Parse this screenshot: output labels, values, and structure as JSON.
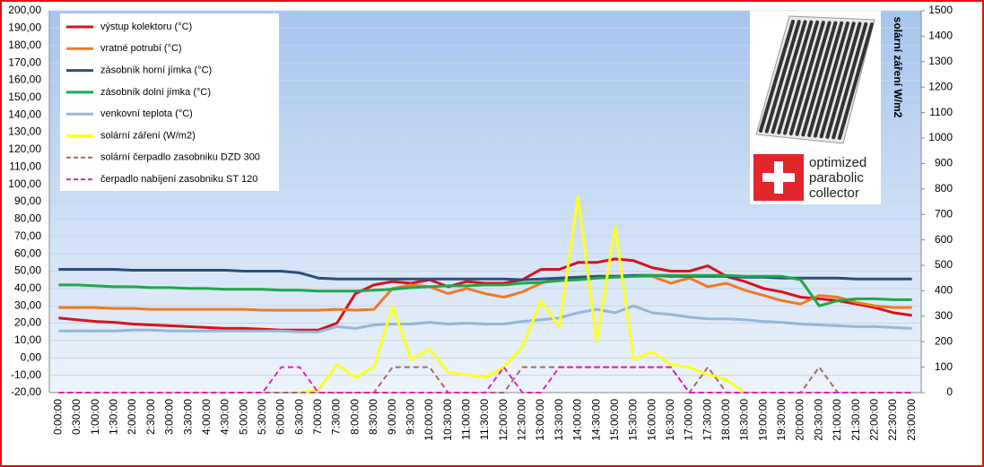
{
  "chart_data": {
    "type": "line",
    "categories": [
      "0:00:00",
      "0:30:00",
      "1:00:00",
      "1:30:00",
      "2:00:00",
      "2:30:00",
      "3:00:00",
      "3:30:00",
      "4:00:00",
      "4:30:00",
      "5:00:00",
      "5:30:00",
      "6:00:00",
      "6:30:00",
      "7:00:00",
      "7:30:00",
      "8:00:00",
      "8:30:00",
      "9:00:00",
      "9:30:00",
      "10:00:00",
      "10:30:00",
      "11:00:00",
      "11:30:00",
      "12:00:00",
      "12:30:00",
      "13:00:00",
      "13:30:00",
      "14:00:00",
      "14:30:00",
      "15:00:00",
      "15:30:00",
      "16:00:00",
      "16:30:00",
      "17:00:00",
      "17:30:00",
      "18:00:00",
      "18:30:00",
      "19:00:00",
      "19:30:00",
      "20:00:00",
      "20:30:00",
      "21:00:00",
      "21:30:00",
      "22:00:00",
      "22:30:00",
      "23:00:00"
    ],
    "ylim": [
      -20,
      200
    ],
    "yticks": [
      {
        "value": -20,
        "label": "-20,00"
      },
      {
        "value": -10,
        "label": "-10,00"
      },
      {
        "value": 0,
        "label": "0,00"
      },
      {
        "value": 10,
        "label": "10,00"
      },
      {
        "value": 20,
        "label": "20,00"
      },
      {
        "value": 30,
        "label": "30,00"
      },
      {
        "value": 40,
        "label": "40,00"
      },
      {
        "value": 50,
        "label": "50,00"
      },
      {
        "value": 60,
        "label": "60,00"
      },
      {
        "value": 70,
        "label": "70,00"
      },
      {
        "value": 80,
        "label": "80,00"
      },
      {
        "value": 90,
        "label": "90,00"
      },
      {
        "value": 100,
        "label": "100,00"
      },
      {
        "value": 110,
        "label": "110,00"
      },
      {
        "value": 120,
        "label": "120,00"
      },
      {
        "value": 130,
        "label": "130,00"
      },
      {
        "value": 140,
        "label": "140,00"
      },
      {
        "value": 150,
        "label": "150,00"
      },
      {
        "value": 160,
        "label": "160,00"
      },
      {
        "value": 170,
        "label": "170,00"
      },
      {
        "value": 180,
        "label": "180,00"
      },
      {
        "value": 190,
        "label": "190,00"
      },
      {
        "value": 200,
        "label": "200,00"
      }
    ],
    "y2lim": [
      0,
      1500
    ],
    "y2ticks": [
      0,
      100,
      200,
      300,
      400,
      500,
      600,
      700,
      800,
      900,
      1000,
      1100,
      1200,
      1300,
      1400,
      1500
    ],
    "y2label": "solární záření W/m2",
    "grid": true,
    "legend": "top-left",
    "series": [
      {
        "name": "výstup kolektoru (°C)",
        "color": "#d8121b",
        "dash": false,
        "values": [
          23,
          22,
          21,
          20.5,
          19.5,
          19,
          18.5,
          18,
          17.5,
          17,
          17,
          16.5,
          16,
          16,
          16,
          20,
          37,
          42,
          44,
          43,
          45,
          41,
          44,
          43,
          43,
          45,
          51,
          51,
          55,
          55,
          57,
          56,
          52,
          50,
          50,
          53,
          47,
          44,
          40,
          38,
          35,
          34,
          33,
          31,
          29,
          26,
          24.5
        ]
      },
      {
        "name": "vratné potrubí (°C)",
        "color": "#ef7a22",
        "dash": false,
        "values": [
          29,
          29,
          29,
          28.5,
          28.5,
          28,
          28,
          28,
          28,
          28,
          28,
          27.5,
          27.5,
          27.5,
          27.5,
          28,
          27.5,
          28,
          40,
          42,
          41,
          37,
          40,
          37,
          35,
          38,
          43,
          46,
          46,
          47,
          47,
          47,
          47,
          43,
          46,
          41,
          43,
          39,
          36,
          33,
          31,
          36,
          35,
          32,
          30,
          29,
          29
        ]
      },
      {
        "name": "zásobník horní jímka (°C)",
        "color": "#2b4e7c",
        "dash": false,
        "values": [
          51,
          51,
          51,
          51,
          50.5,
          50.5,
          50.5,
          50.5,
          50.5,
          50.5,
          50,
          50,
          50,
          49,
          46,
          45.5,
          45.5,
          45.5,
          45.5,
          45.5,
          45.5,
          45.5,
          45.5,
          45.5,
          45.5,
          45,
          45.5,
          46,
          46.5,
          47,
          47,
          47.5,
          47.5,
          47,
          47,
          47,
          47,
          46.5,
          46.5,
          46,
          46,
          46,
          46,
          45.5,
          45.5,
          45.5,
          45.5
        ]
      },
      {
        "name": "zásobník dolní jímka  (°C)",
        "color": "#1fa84a",
        "dash": false,
        "values": [
          42,
          42,
          41.5,
          41,
          41,
          40.5,
          40.5,
          40,
          40,
          39.5,
          39.5,
          39.5,
          39,
          39,
          38.5,
          38.5,
          38.5,
          39,
          39.5,
          40.5,
          41,
          41.5,
          41.5,
          42,
          42,
          43,
          43.5,
          44.5,
          45,
          46,
          46.5,
          47,
          47.5,
          47.5,
          47.5,
          47.5,
          47.5,
          47,
          47,
          47,
          45,
          30,
          33,
          34,
          34,
          33.5,
          33.5
        ]
      },
      {
        "name": "venkovní teplota (°C)",
        "color": "#94b7da",
        "dash": false,
        "values": [
          15.5,
          15.5,
          15.5,
          15.5,
          16,
          16,
          15.5,
          15.5,
          15.5,
          15.5,
          15.5,
          15.5,
          15.5,
          15,
          15,
          18,
          17,
          19,
          19.5,
          19.5,
          20.5,
          19.5,
          20,
          19.5,
          19.5,
          21,
          22,
          23,
          26,
          28,
          26,
          30,
          26,
          25,
          23.5,
          22.5,
          22.5,
          22,
          21,
          20.5,
          19.5,
          19,
          18.5,
          18,
          18,
          17.5,
          17
        ]
      },
      {
        "name": "solární záření (W/m2)",
        "color": "#ffff22",
        "dash": false,
        "axis": "y2",
        "values": [
          null,
          null,
          null,
          null,
          null,
          null,
          null,
          null,
          null,
          null,
          null,
          null,
          null,
          0,
          10,
          110,
          60,
          100,
          340,
          130,
          170,
          80,
          70,
          60,
          100,
          180,
          360,
          260,
          770,
          200,
          650,
          130,
          160,
          110,
          100,
          70,
          50,
          0,
          null,
          null,
          null,
          null,
          null,
          null,
          null,
          null,
          null
        ]
      },
      {
        "name": "solární čerpadlo zasobniku  DZD 300",
        "color": "#a86a5c",
        "dash": true,
        "axis": "y2",
        "values": [
          0,
          0,
          0,
          0,
          0,
          0,
          0,
          0,
          0,
          0,
          0,
          0,
          0,
          0,
          0,
          0,
          0,
          0,
          100,
          100,
          100,
          0,
          0,
          0,
          0,
          100,
          100,
          100,
          100,
          100,
          100,
          100,
          100,
          100,
          0,
          100,
          0,
          0,
          0,
          0,
          0,
          100,
          0,
          0,
          0,
          0,
          0
        ]
      },
      {
        "name": "čerpadlo nabíjení  zasobniku ST 120",
        "color": "#e21fc4",
        "dash": true,
        "axis": "y2",
        "values": [
          0,
          0,
          0,
          0,
          0,
          0,
          0,
          0,
          0,
          0,
          0,
          0,
          100,
          100,
          0,
          0,
          0,
          0,
          0,
          0,
          0,
          0,
          0,
          0,
          100,
          0,
          0,
          100,
          100,
          100,
          100,
          100,
          100,
          100,
          0,
          0,
          0,
          0,
          0,
          0,
          0,
          0,
          0,
          0,
          0,
          0,
          0
        ]
      }
    ],
    "logo_text": [
      "optimized",
      "parabolic",
      "collector"
    ]
  }
}
